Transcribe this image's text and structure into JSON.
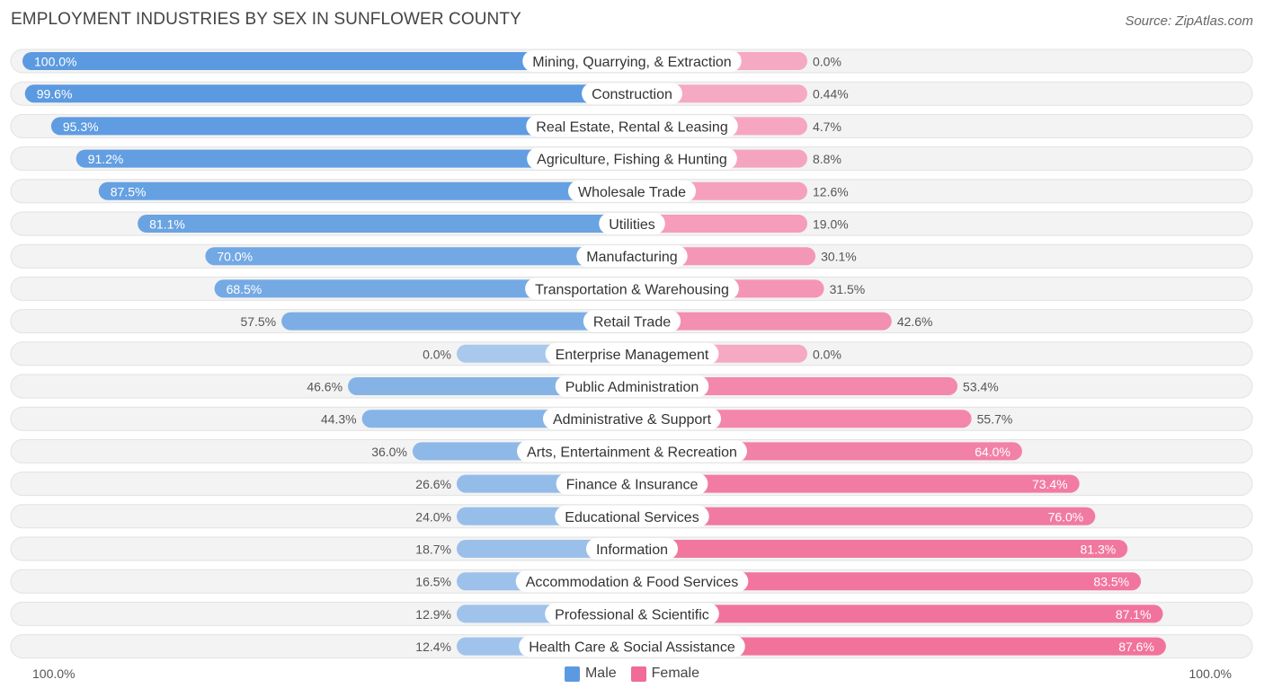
{
  "header": {
    "title": "EMPLOYMENT INDUSTRIES BY SEX IN SUNFLOWER COUNTY",
    "source": "Source: ZipAtlas.com"
  },
  "axis": {
    "left_label": "100.0%",
    "right_label": "100.0%"
  },
  "legend": {
    "male_label": "Male",
    "female_label": "Female"
  },
  "colors": {
    "male_strong": "#5b9ae0",
    "male_light": "#a9c9ec",
    "female_strong": "#f06b97",
    "female_light": "#f6a9c3",
    "row_bg": "#f3f3f3",
    "row_border": "#e2e2e2"
  },
  "chart_data": {
    "type": "bar",
    "orientation": "horizontal-diverging",
    "title": "EMPLOYMENT INDUSTRIES BY SEX IN SUNFLOWER COUNTY",
    "xlim": [
      -100,
      100
    ],
    "categories": [
      "Mining, Quarrying, & Extraction",
      "Construction",
      "Real Estate, Rental & Leasing",
      "Agriculture, Fishing & Hunting",
      "Wholesale Trade",
      "Utilities",
      "Manufacturing",
      "Transportation & Warehousing",
      "Retail Trade",
      "Enterprise Management",
      "Public Administration",
      "Administrative & Support",
      "Arts, Entertainment & Recreation",
      "Finance & Insurance",
      "Educational Services",
      "Information",
      "Accommodation & Food Services",
      "Professional & Scientific",
      "Health Care & Social Assistance"
    ],
    "series": [
      {
        "name": "Male",
        "values": [
          100.0,
          99.6,
          95.3,
          91.2,
          87.5,
          81.1,
          70.0,
          68.5,
          57.5,
          0.0,
          46.6,
          44.3,
          36.0,
          26.6,
          24.0,
          18.7,
          16.5,
          12.9,
          12.4
        ],
        "labels": [
          "100.0%",
          "99.6%",
          "95.3%",
          "91.2%",
          "87.5%",
          "81.1%",
          "70.0%",
          "68.5%",
          "57.5%",
          "0.0%",
          "46.6%",
          "44.3%",
          "36.0%",
          "26.6%",
          "24.0%",
          "18.7%",
          "16.5%",
          "12.9%",
          "12.4%"
        ]
      },
      {
        "name": "Female",
        "values": [
          0.0,
          0.44,
          4.7,
          8.8,
          12.6,
          19.0,
          30.1,
          31.5,
          42.6,
          0.0,
          53.4,
          55.7,
          64.0,
          73.4,
          76.0,
          81.3,
          83.5,
          87.1,
          87.6
        ],
        "labels": [
          "0.0%",
          "0.44%",
          "4.7%",
          "8.8%",
          "12.6%",
          "19.0%",
          "30.1%",
          "31.5%",
          "42.6%",
          "0.0%",
          "53.4%",
          "55.7%",
          "64.0%",
          "73.4%",
          "76.0%",
          "81.3%",
          "83.5%",
          "87.1%",
          "87.6%"
        ]
      }
    ]
  }
}
